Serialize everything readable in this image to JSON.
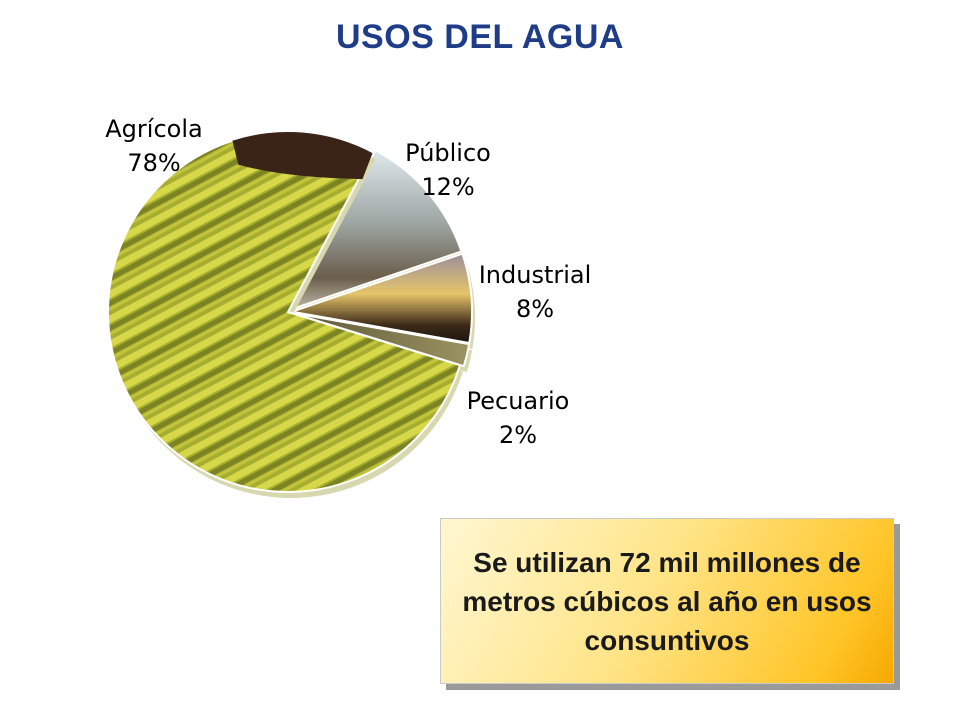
{
  "title": "USOS DEL AGUA",
  "chart_data": {
    "type": "pie",
    "title": "USOS DEL AGUA",
    "slices": [
      {
        "name": "Agrícola",
        "value": 78,
        "label": "78%",
        "color": "#b8b83a"
      },
      {
        "name": "Público",
        "value": 12,
        "label": "12%",
        "color": "#8c8c8c"
      },
      {
        "name": "Industrial",
        "value": 8,
        "label": "8%",
        "color": "#c08a3c"
      },
      {
        "name": "Pecuario",
        "value": 2,
        "label": "2%",
        "color": "#6e6a45"
      }
    ]
  },
  "callout": {
    "text": "Se utilizan 72 mil millones de metros cúbicos al año en usos consuntivos"
  }
}
